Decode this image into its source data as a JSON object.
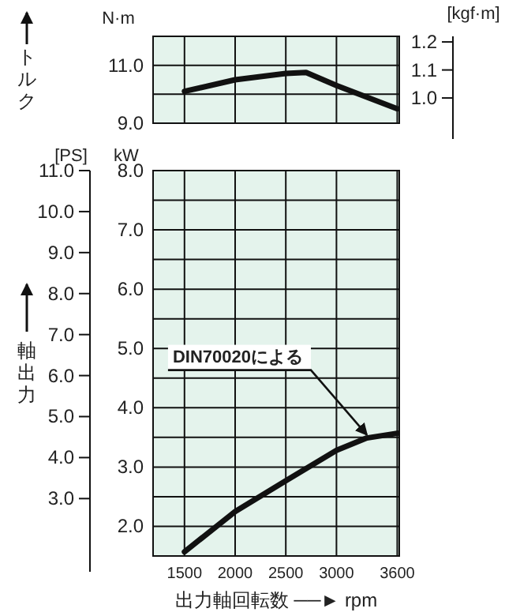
{
  "chart_data": [
    {
      "type": "line",
      "ylabel": "トルク",
      "y2label": "[kgf·m]",
      "annotations": [
        "N·m"
      ],
      "xlim": [
        1190,
        3620
      ],
      "xticks": [
        1500,
        2000,
        2500,
        3000,
        3600
      ],
      "ylim": [
        9,
        12
      ],
      "yticks": [
        {
          "value": 9,
          "label": "9.0"
        },
        {
          "value": 10,
          "label": null
        },
        {
          "value": 11,
          "label": "11.0"
        },
        {
          "value": 12,
          "label": null
        }
      ],
      "y2lim": [
        0.91,
        1.22
      ],
      "y2ticks": [
        {
          "value": 1.0,
          "label": "1.0"
        },
        {
          "value": 1.1,
          "label": "1.1"
        },
        {
          "value": 1.2,
          "label": "1.2"
        }
      ],
      "tick_labels": "y",
      "grid": true,
      "series": [
        {
          "color": "#111111",
          "x": [
            1500,
            2000,
            2500,
            2700,
            3000,
            3600
          ],
          "values": [
            10.1,
            10.5,
            10.72,
            10.75,
            10.3,
            9.5
          ]
        }
      ]
    },
    {
      "type": "line",
      "y2label": "軸出力",
      "xlabel": "出力軸回転数 ──► rpm",
      "annotations": [
        "[PS]",
        "kW",
        {
          "text": "DIN70020による",
          "x": 3300,
          "y": 3.49
        }
      ],
      "xlim": [
        1190,
        3620
      ],
      "xticks": [
        1500,
        2000,
        2500,
        3000,
        3600
      ],
      "ylim": [
        1.5,
        8
      ],
      "yticks": [
        {
          "value": 2,
          "label": "2.0"
        },
        {
          "value": 2.5,
          "label": null
        },
        {
          "value": 3,
          "label": "3.0"
        },
        {
          "value": 3.5,
          "label": null
        },
        {
          "value": 4,
          "label": "4.0"
        },
        {
          "value": 4.5,
          "label": null
        },
        {
          "value": 5,
          "label": "5.0"
        },
        {
          "value": 5.5,
          "label": null
        },
        {
          "value": 6,
          "label": "6.0"
        },
        {
          "value": 6.5,
          "label": null
        },
        {
          "value": 7,
          "label": "7.0"
        },
        {
          "value": 7.5,
          "label": null
        },
        {
          "value": 8,
          "label": "8.0"
        }
      ],
      "y2lim": [
        1.6,
        11
      ],
      "y2ticks": [
        {
          "value": 3,
          "label": "3.0"
        },
        {
          "value": 4,
          "label": "4.0"
        },
        {
          "value": 5,
          "label": "5.0"
        },
        {
          "value": 6,
          "label": "6.0"
        },
        {
          "value": 7,
          "label": "7.0"
        },
        {
          "value": 8,
          "label": "8.0"
        },
        {
          "value": 9,
          "label": "9.0"
        },
        {
          "value": 10,
          "label": "10.0"
        },
        {
          "value": 11,
          "label": "11.0"
        }
      ],
      "grid": true,
      "series": [
        {
          "color": "#111111",
          "x": [
            1500,
            2000,
            2500,
            3000,
            3300,
            3600
          ],
          "values": [
            1.57,
            2.25,
            2.77,
            3.28,
            3.49,
            3.57
          ]
        }
      ]
    }
  ]
}
